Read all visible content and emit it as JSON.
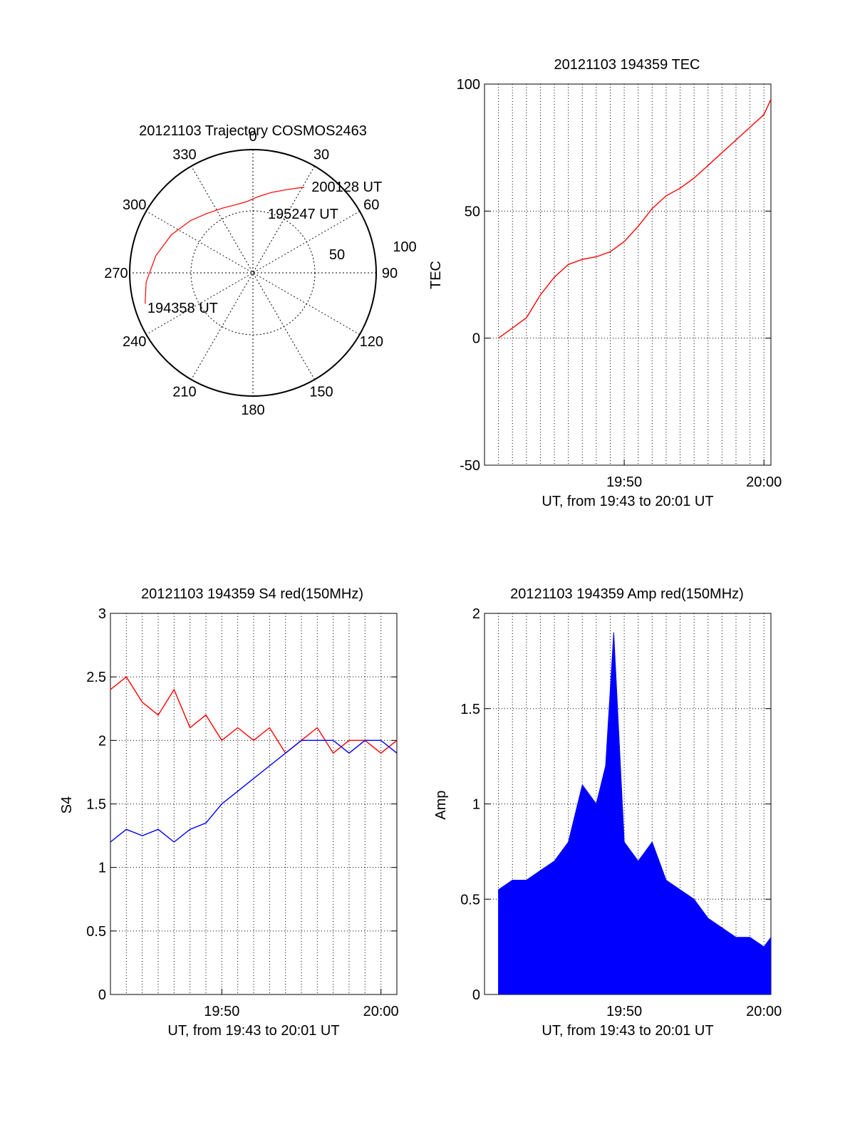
{
  "chart_data": [
    {
      "id": "trajectory",
      "type": "polar",
      "title": "20121103 Trajectory COSMOS2463",
      "azimuth_labels": [
        "0",
        "30",
        "60",
        "90",
        "120",
        "150",
        "180",
        "210",
        "240",
        "270",
        "300",
        "330"
      ],
      "ring_labels": [
        "50",
        "100"
      ],
      "radial_range": [
        0,
        100
      ],
      "grid": true,
      "series": [
        {
          "color": "#ff0000",
          "points": [
            [
              254,
              91
            ],
            [
              265,
              87
            ],
            [
              280,
              80
            ],
            [
              295,
              73
            ],
            [
              310,
              66
            ],
            [
              322,
              61
            ],
            [
              335,
              58
            ],
            [
              345,
              57
            ],
            [
              355,
              58
            ],
            [
              4,
              62
            ],
            [
              13,
              67
            ],
            [
              21,
              72
            ],
            [
              28,
              78
            ],
            [
              31,
              81
            ]
          ]
        }
      ],
      "annotations": [
        {
          "text": "194358 UT",
          "az": 252,
          "r": 90
        },
        {
          "text": "195247 UT",
          "az": 14,
          "r": 50
        },
        {
          "text": "200128 UT",
          "az": 34,
          "r": 85
        }
      ]
    },
    {
      "id": "tec",
      "type": "line",
      "title": "20121103 194359 TEC",
      "xlabel": "UT, from 19:43 to 20:01 UT",
      "ylabel": "TEC",
      "xlim": [
        "19:40",
        "20:00:30"
      ],
      "ylim": [
        -50,
        100
      ],
      "x_ticks": [
        "19:50",
        "20:00"
      ],
      "y_ticks": [
        "-50",
        "0",
        "50",
        "100"
      ],
      "grid": true,
      "series": [
        {
          "color": "#ff0000",
          "points": [
            [
              "19:41:00",
              0
            ],
            [
              "19:42:00",
              4
            ],
            [
              "19:43:00",
              8
            ],
            [
              "19:44:00",
              17
            ],
            [
              "19:45:00",
              24
            ],
            [
              "19:46:00",
              29
            ],
            [
              "19:47:00",
              31
            ],
            [
              "19:48:00",
              32
            ],
            [
              "19:49:00",
              34
            ],
            [
              "19:50:00",
              38
            ],
            [
              "19:51:00",
              44
            ],
            [
              "19:52:00",
              51
            ],
            [
              "19:53:00",
              56
            ],
            [
              "19:54:00",
              59
            ],
            [
              "19:55:00",
              63
            ],
            [
              "19:56:00",
              68
            ],
            [
              "19:57:00",
              73
            ],
            [
              "19:58:00",
              78
            ],
            [
              "19:59:00",
              83
            ],
            [
              "20:00:00",
              88
            ],
            [
              "20:00:30",
              94
            ]
          ]
        }
      ]
    },
    {
      "id": "s4",
      "type": "line",
      "title": "20121103 194359 S4 red(150MHz)",
      "xlabel": "UT, from 19:43 to 20:01 UT",
      "ylabel": "S4",
      "xlim": [
        "19:43",
        "20:01"
      ],
      "ylim": [
        0,
        3
      ],
      "x_ticks": [
        "19:50",
        "20:00"
      ],
      "y_ticks": [
        "0",
        "0.5",
        "1",
        "1.5",
        "2",
        "2.5",
        "3"
      ],
      "grid": true,
      "series": [
        {
          "color": "#ff0000",
          "points": [
            [
              "19:43:00",
              2.4
            ],
            [
              "19:44:00",
              2.5
            ],
            [
              "19:45:00",
              2.3
            ],
            [
              "19:46:00",
              2.2
            ],
            [
              "19:47:00",
              2.4
            ],
            [
              "19:48:00",
              2.1
            ],
            [
              "19:49:00",
              2.2
            ],
            [
              "19:50:00",
              2.0
            ],
            [
              "19:51:00",
              2.1
            ],
            [
              "19:52:00",
              2.0
            ],
            [
              "19:53:00",
              2.1
            ],
            [
              "19:54:00",
              1.9
            ],
            [
              "19:55:00",
              2.0
            ],
            [
              "19:56:00",
              2.1
            ],
            [
              "19:57:00",
              1.9
            ],
            [
              "19:58:00",
              2.0
            ],
            [
              "19:59:00",
              2.0
            ],
            [
              "20:00:00",
              1.9
            ],
            [
              "20:01:00",
              2.0
            ]
          ]
        },
        {
          "color": "#0000ff",
          "points": [
            [
              "19:43:00",
              1.2
            ],
            [
              "19:44:00",
              1.3
            ],
            [
              "19:45:00",
              1.25
            ],
            [
              "19:46:00",
              1.3
            ],
            [
              "19:47:00",
              1.2
            ],
            [
              "19:48:00",
              1.3
            ],
            [
              "19:49:00",
              1.35
            ],
            [
              "19:50:00",
              1.5
            ],
            [
              "19:51:00",
              1.6
            ],
            [
              "19:52:00",
              1.7
            ],
            [
              "19:53:00",
              1.8
            ],
            [
              "19:54:00",
              1.9
            ],
            [
              "19:55:00",
              2.0
            ],
            [
              "19:56:00",
              2.0
            ],
            [
              "19:57:00",
              2.0
            ],
            [
              "19:58:00",
              1.9
            ],
            [
              "19:59:00",
              2.0
            ],
            [
              "20:00:00",
              2.0
            ],
            [
              "20:01:00",
              1.9
            ]
          ]
        }
      ]
    },
    {
      "id": "amp",
      "type": "bar",
      "title": "20121103 194359 Amp red(150MHz)",
      "xlabel": "UT, from 19:43 to 20:01 UT",
      "ylabel": "Amp",
      "xlim": [
        "19:40",
        "20:00:30"
      ],
      "ylim": [
        0,
        2
      ],
      "x_ticks": [
        "19:50",
        "20:00"
      ],
      "y_ticks": [
        "0",
        "0.5",
        "1",
        "1.5",
        "2"
      ],
      "grid": true,
      "series": [
        {
          "color": "#0000ff",
          "points": [
            [
              "19:41:00",
              0.55
            ],
            [
              "19:42:00",
              0.6
            ],
            [
              "19:43:00",
              0.6
            ],
            [
              "19:44:00",
              0.65
            ],
            [
              "19:45:00",
              0.7
            ],
            [
              "19:46:00",
              0.8
            ],
            [
              "19:47:00",
              1.1
            ],
            [
              "19:48:00",
              1.0
            ],
            [
              "19:48:40",
              1.2
            ],
            [
              "19:49:15",
              1.9
            ],
            [
              "19:50:00",
              0.8
            ],
            [
              "19:51:00",
              0.7
            ],
            [
              "19:52:00",
              0.8
            ],
            [
              "19:53:00",
              0.6
            ],
            [
              "19:54:00",
              0.55
            ],
            [
              "19:55:00",
              0.5
            ],
            [
              "19:56:00",
              0.4
            ],
            [
              "19:57:00",
              0.35
            ],
            [
              "19:58:00",
              0.3
            ],
            [
              "19:59:00",
              0.3
            ],
            [
              "20:00:00",
              0.25
            ],
            [
              "20:00:30",
              0.3
            ]
          ]
        }
      ]
    }
  ]
}
